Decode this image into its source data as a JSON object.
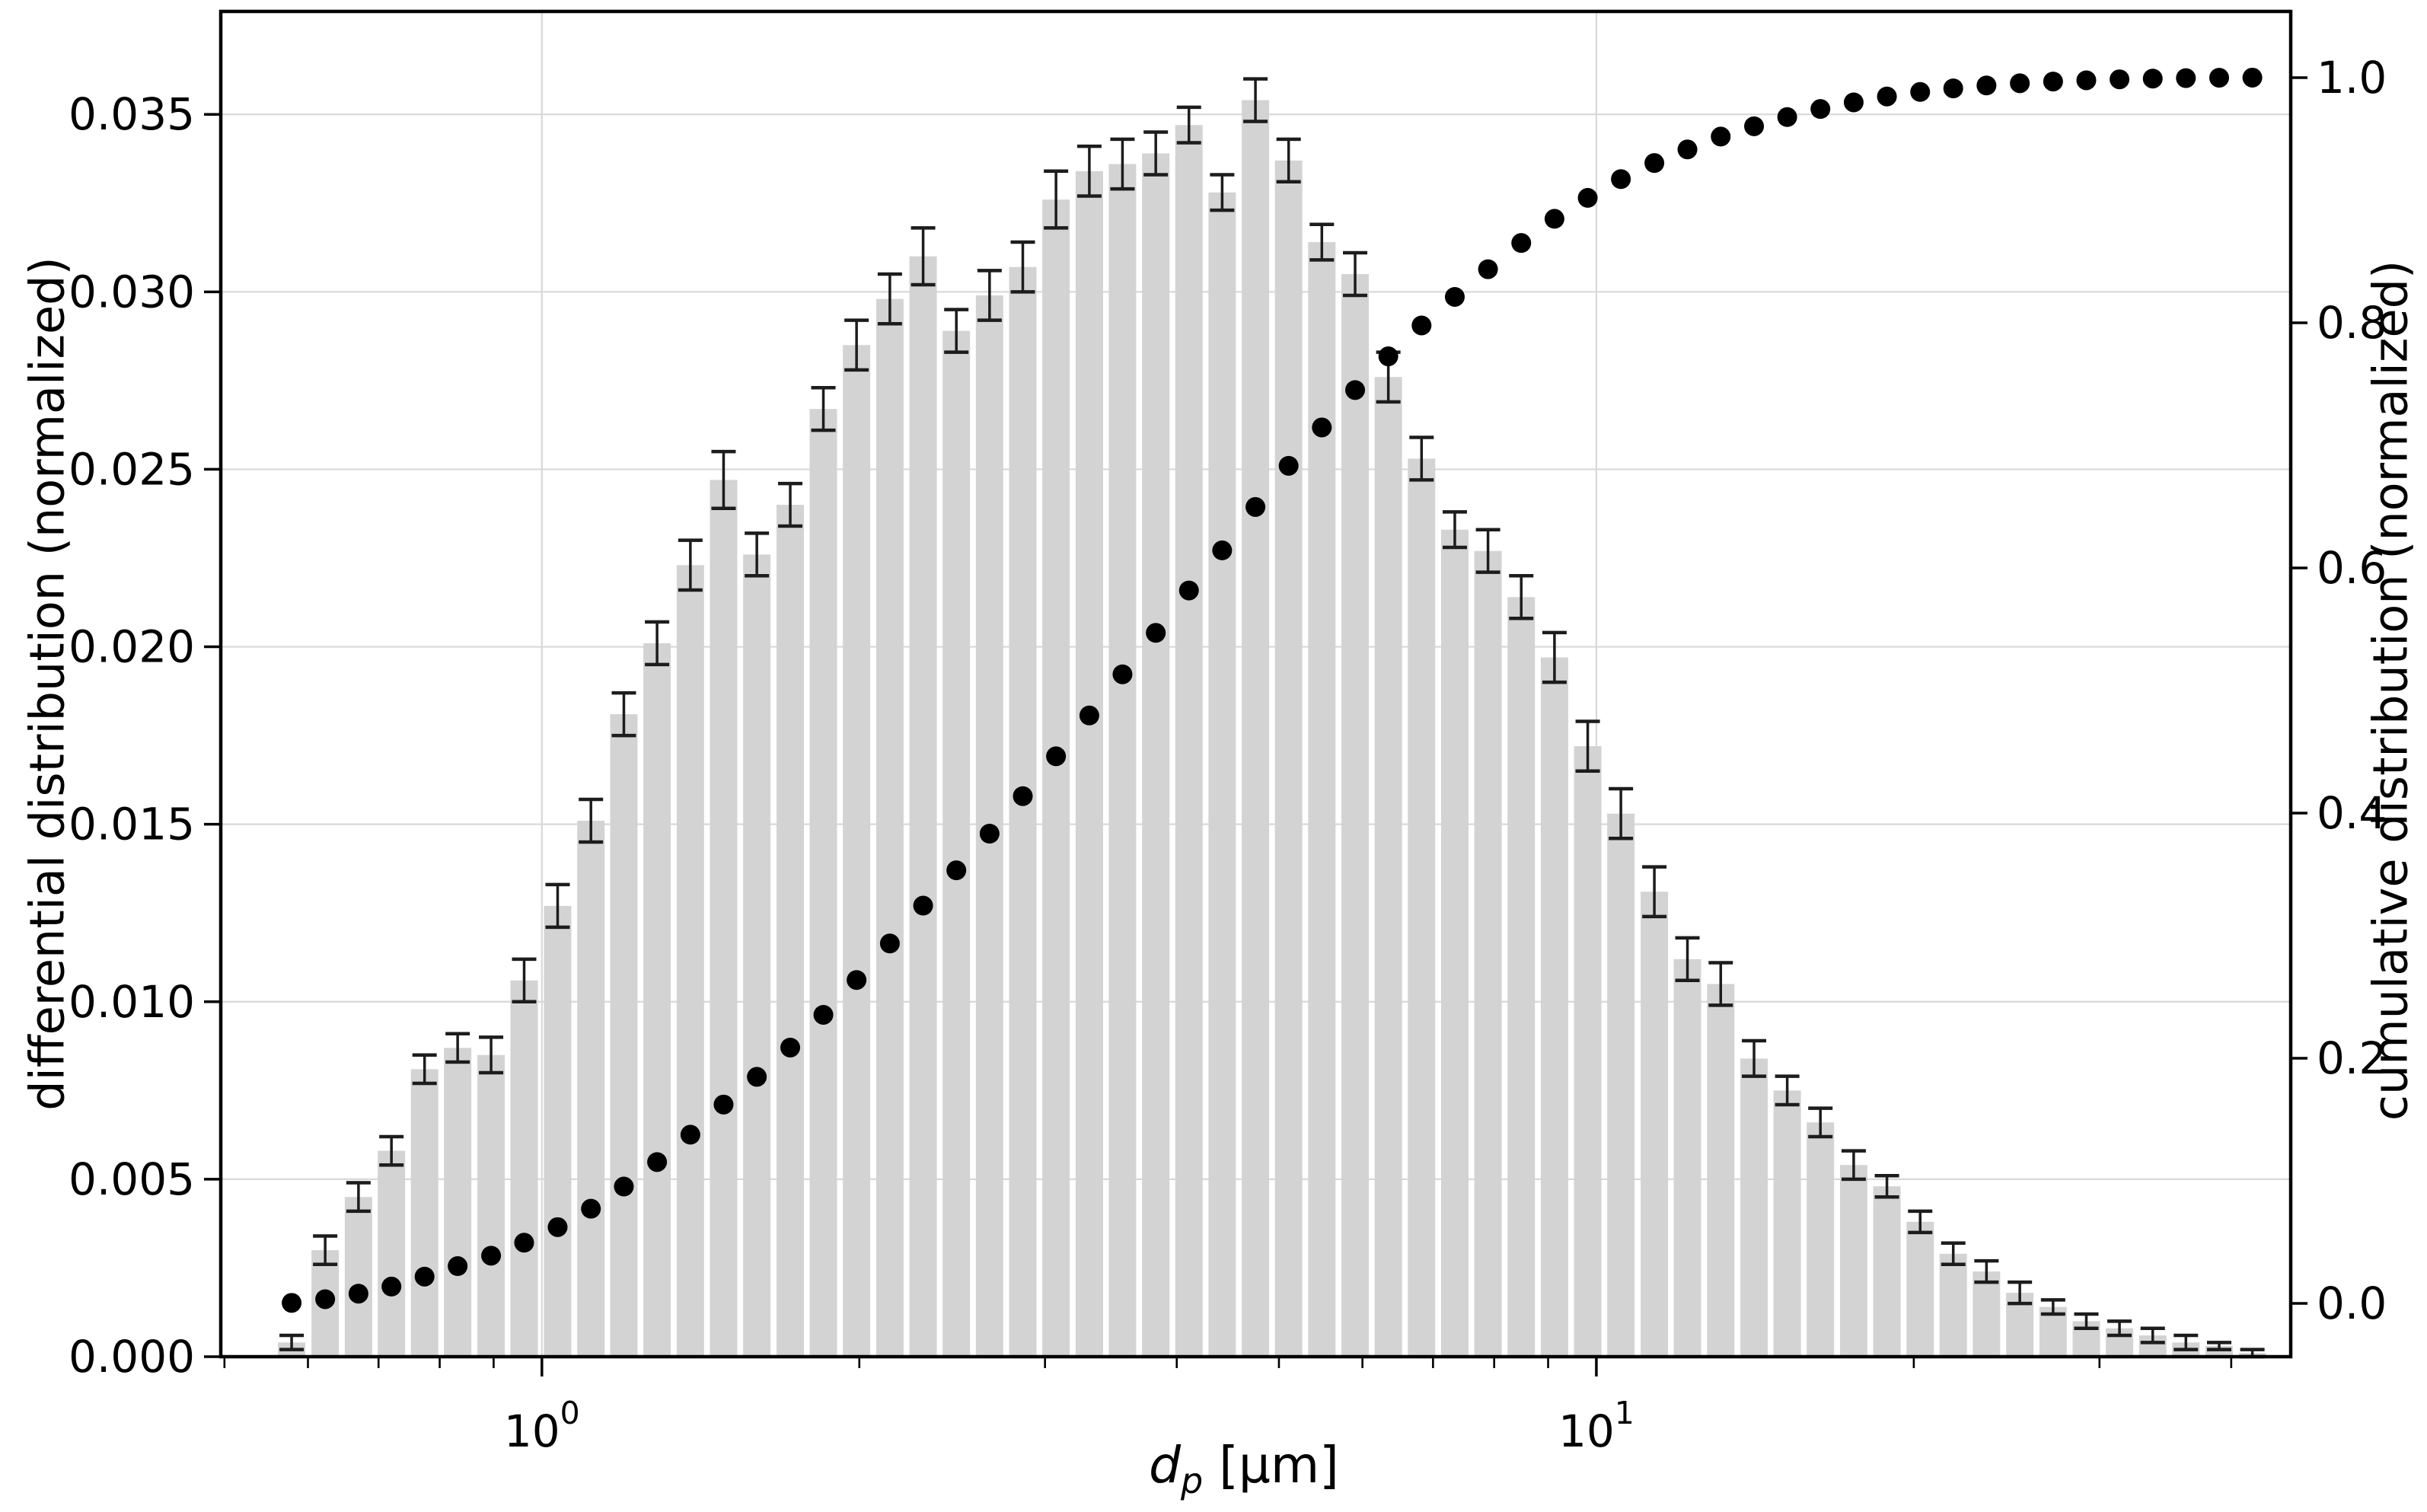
{
  "chart_data": {
    "type": "bar",
    "title": "",
    "xlabel": "d_p [μm]",
    "xlabel_parts": {
      "base": "d",
      "sub": "p",
      "unit": " [μm]"
    },
    "ylabel_left": "differential distribution (normalized)",
    "ylabel_right": "cumulative distribution (normalized)",
    "x_scale": "log",
    "xlim": [
      0.496,
      45.55
    ],
    "ylim_left": [
      0,
      0.0379
    ],
    "ylim_right": [
      -0.0435,
      1.054
    ],
    "grid": {
      "horizontal": "left-major-ticks",
      "vertical": "x-major-ticks",
      "color": "#d8d8d8"
    },
    "x_major_ticks": {
      "values": [
        1,
        10
      ],
      "label_bases": [
        "10",
        "10"
      ],
      "label_exponents": [
        "0",
        "1"
      ]
    },
    "x_minor_ticks": [
      0.5,
      0.6,
      0.7,
      0.8,
      0.9,
      2,
      3,
      4,
      5,
      6,
      7,
      8,
      9,
      20,
      30,
      40
    ],
    "y_ticks_left": {
      "values": [
        0.0,
        0.005,
        0.01,
        0.015,
        0.02,
        0.025,
        0.03,
        0.035
      ],
      "labels": [
        "0.000",
        "0.005",
        "0.010",
        "0.015",
        "0.020",
        "0.025",
        "0.030",
        "0.035"
      ]
    },
    "y_ticks_right": {
      "values": [
        0.0,
        0.2,
        0.4,
        0.6,
        0.8,
        1.0
      ],
      "labels": [
        "0.0",
        "0.2",
        "0.4",
        "0.6",
        "0.8",
        "1.0"
      ]
    },
    "colors": {
      "bar_fill": "#d3d3d3",
      "error_bar": "#1c1c1c",
      "dot": "#000000",
      "spine": "#000000"
    },
    "x": [
      0.579,
      0.623,
      0.67,
      0.72,
      0.774,
      0.832,
      0.895,
      0.962,
      1.035,
      1.113,
      1.196,
      1.286,
      1.383,
      1.487,
      1.599,
      1.72,
      1.849,
      1.988,
      2.138,
      2.299,
      2.472,
      2.658,
      2.858,
      3.073,
      3.305,
      3.553,
      3.821,
      4.108,
      4.417,
      4.75,
      5.107,
      5.491,
      5.905,
      6.349,
      6.827,
      7.341,
      7.893,
      8.487,
      9.126,
      9.813,
      10.55,
      11.35,
      12.2,
      13.12,
      14.11,
      15.17,
      16.31,
      17.54,
      18.86,
      20.28,
      21.8,
      23.44,
      25.21,
      27.11,
      29.15,
      31.34,
      33.7,
      36.23,
      38.96,
      41.89
    ],
    "series": [
      {
        "name": "differential distribution (normalized)",
        "type": "bar",
        "axis": "left",
        "values": [
          0.0004,
          0.003,
          0.0045,
          0.0058,
          0.0081,
          0.0087,
          0.0085,
          0.0106,
          0.0127,
          0.0151,
          0.0181,
          0.0201,
          0.0223,
          0.0247,
          0.0226,
          0.024,
          0.0267,
          0.0285,
          0.0298,
          0.031,
          0.0289,
          0.0299,
          0.0307,
          0.0326,
          0.0334,
          0.0336,
          0.0339,
          0.0347,
          0.0328,
          0.0354,
          0.0337,
          0.0314,
          0.0305,
          0.0276,
          0.0253,
          0.0233,
          0.0227,
          0.0214,
          0.0197,
          0.0172,
          0.0153,
          0.0131,
          0.0112,
          0.0105,
          0.0084,
          0.0075,
          0.0066,
          0.0054,
          0.0048,
          0.0038,
          0.0029,
          0.0024,
          0.0018,
          0.0014,
          0.001,
          0.0008,
          0.0006,
          0.0004,
          0.0003,
          0.0001
        ],
        "yerr": [
          0.0002,
          0.0004,
          0.0004,
          0.0004,
          0.0004,
          0.0004,
          0.0005,
          0.0006,
          0.0006,
          0.0006,
          0.0006,
          0.0006,
          0.0007,
          0.0008,
          0.0006,
          0.0006,
          0.0006,
          0.0007,
          0.0007,
          0.0008,
          0.0006,
          0.0007,
          0.0007,
          0.0008,
          0.0007,
          0.0007,
          0.0006,
          0.0005,
          0.0005,
          0.0006,
          0.0006,
          0.0005,
          0.0006,
          0.0007,
          0.0006,
          0.0005,
          0.0006,
          0.0006,
          0.0007,
          0.0007,
          0.0007,
          0.0007,
          0.0006,
          0.0006,
          0.0005,
          0.0004,
          0.0004,
          0.0004,
          0.0003,
          0.0003,
          0.0003,
          0.0003,
          0.0003,
          0.0002,
          0.0002,
          0.0002,
          0.0002,
          0.0002,
          0.0001,
          0.0001
        ]
      },
      {
        "name": "cumulative distribution (normalized)",
        "type": "scatter",
        "axis": "right",
        "values": [
          0.0004,
          0.0034,
          0.0079,
          0.0137,
          0.0218,
          0.0304,
          0.0389,
          0.0495,
          0.0622,
          0.0772,
          0.0953,
          0.1153,
          0.1376,
          0.1622,
          0.1848,
          0.2087,
          0.2354,
          0.2638,
          0.2936,
          0.3245,
          0.3533,
          0.3832,
          0.4138,
          0.4463,
          0.4796,
          0.5132,
          0.547,
          0.5816,
          0.6143,
          0.6497,
          0.6833,
          0.7146,
          0.7451,
          0.7726,
          0.7978,
          0.8211,
          0.8437,
          0.8651,
          0.8848,
          0.9019,
          0.9172,
          0.9303,
          0.9414,
          0.9519,
          0.9603,
          0.9678,
          0.9744,
          0.9798,
          0.9846,
          0.9883,
          0.9912,
          0.9936,
          0.9954,
          0.9968,
          0.9978,
          0.9986,
          0.9992,
          0.9996,
          0.9999,
          1.0
        ]
      }
    ]
  }
}
